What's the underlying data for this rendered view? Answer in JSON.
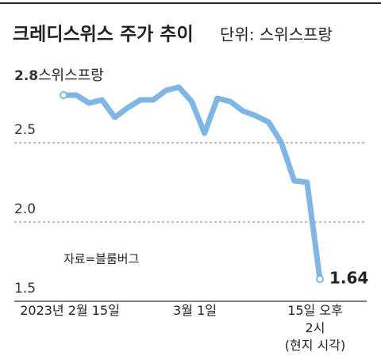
{
  "chart_data": {
    "type": "line",
    "title": "크레디스위스 주가 추이",
    "subtitle": "단위: 스위스프랑",
    "y_unit": "스위스프랑",
    "annotation": "자료=블룸버그",
    "categories": [
      "2023년 2월 15일",
      null,
      null,
      null,
      null,
      null,
      null,
      null,
      null,
      null,
      "3월 1일",
      null,
      null,
      null,
      null,
      null,
      null,
      null,
      null,
      null,
      "15일 오후 2시\n(현지 시각)"
    ],
    "series": [
      {
        "name": "크레디스위스",
        "color": "#7fb6e4",
        "values": [
          2.8,
          2.8,
          2.75,
          2.77,
          2.66,
          2.72,
          2.77,
          2.77,
          2.83,
          2.85,
          2.76,
          2.56,
          2.78,
          2.76,
          2.7,
          2.67,
          2.63,
          2.5,
          2.26,
          2.25,
          1.64
        ],
        "value_labels": [
          null,
          null,
          null,
          null,
          null,
          null,
          null,
          null,
          null,
          null,
          null,
          null,
          null,
          null,
          null,
          null,
          null,
          null,
          null,
          null,
          "1.64"
        ]
      }
    ],
    "ylim": [
      1.5,
      2.8
    ],
    "yticks": [
      1.5,
      {
        "value": 2,
        "label": "2.0"
      },
      2.5,
      2.8
    ],
    "grid": true
  }
}
